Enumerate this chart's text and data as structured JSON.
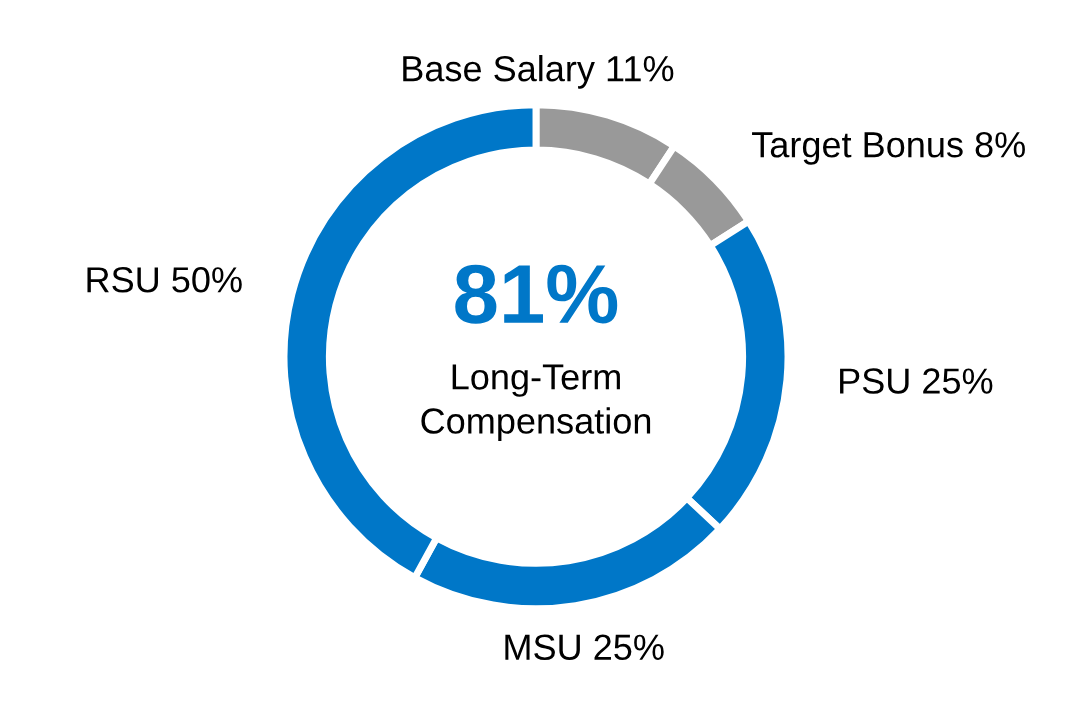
{
  "chart_data": {
    "type": "donut",
    "categories": [
      "Base Salary",
      "Target Bonus",
      "PSU",
      "MSU",
      "RSU"
    ],
    "values": [
      11,
      8,
      25,
      25,
      50
    ],
    "value_labels": [
      "11%",
      "8%",
      "25%",
      "25%",
      "50%"
    ],
    "colors": [
      "#999999",
      "#999999",
      "#0077c8",
      "#0077c8",
      "#0077c8"
    ],
    "annotations": [
      "81%",
      "Long-Term\nCompensation"
    ],
    "legend": false
  }
}
